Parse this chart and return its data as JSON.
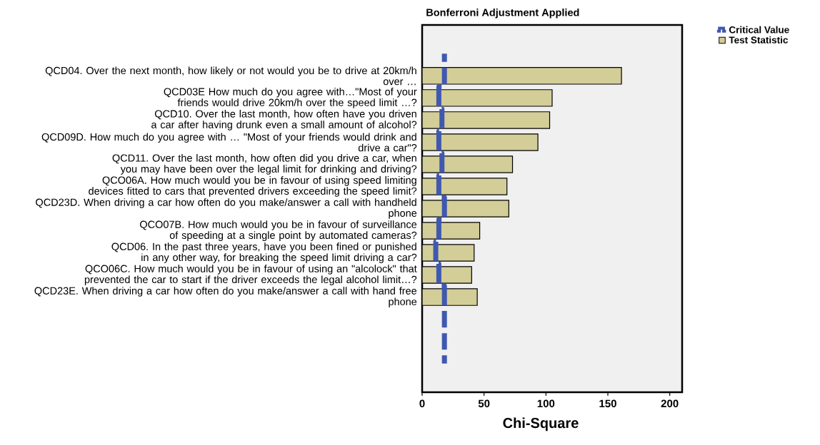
{
  "chart_data": {
    "type": "bar",
    "orientation": "horizontal",
    "title": "Bonferroni Adjustment Applied",
    "xlabel": "Chi-Square",
    "categories": [
      null,
      "QCD04. Over the next month, how likely or not would you be to drive at 20km/h over …",
      "QCD03E How much do you agree with…\"Most of your friends would drive 20km/h over the speed limit …?",
      "QCD10. Over the last month, how often have you driven a car after having drunk even a small amount of alcohol?",
      "QCD09D. How much do you agree with … \"Most of your friends would drink and drive a car\"?",
      "QCD11. Over the last month, how often did you drive a car, when you may have been over the legal limit for drinking and driving?",
      "QCO06A. How much would you be in favour of using speed limiting devices fitted to cars that prevented drivers exceeding the speed limit?",
      "QCD23D. When driving a car how often do you make/answer a call with handheld phone",
      "QCO07B. How much would you be in favour of surveillance of speeding at a single point by automated cameras?",
      "QCD06. In the past three years, have you been fined or punished in any other way, for breaking the speed limit driving a car?",
      "QCO06C. How much would you be in favour of using an \"alcolock\" that prevented the car to start if the driver exceeds the legal alcohol limit…?",
      "QCD23E. When driving a car how often do you make/answer a call with hand free phone",
      null,
      null,
      null
    ],
    "series": [
      {
        "name": "Critical Value",
        "type": "step",
        "color": "#3f58b0",
        "line_style": "dashed",
        "values": [
          18,
          18,
          13.5,
          16,
          13.5,
          16,
          13.5,
          18,
          13.5,
          11,
          13.5,
          18,
          18,
          18,
          18
        ]
      },
      {
        "name": "Test Statistic",
        "type": "bar",
        "color": "#d3cd98",
        "values": [
          null,
          161,
          105,
          103,
          93.5,
          73,
          68.5,
          70,
          46.5,
          42,
          40,
          44.5,
          null,
          null,
          null
        ]
      }
    ],
    "xlim": [
      0,
      210
    ],
    "xticks": [
      0,
      50,
      100,
      150,
      200
    ],
    "legend": "top right"
  }
}
